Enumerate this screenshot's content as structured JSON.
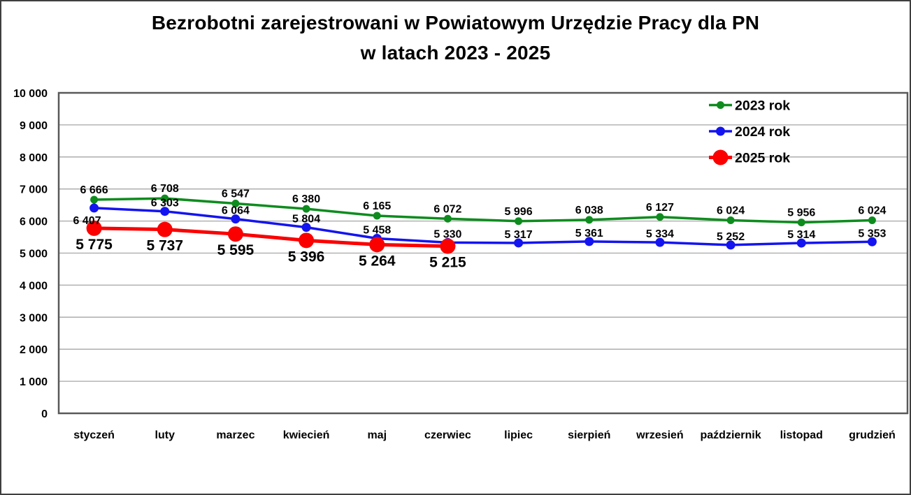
{
  "title": {
    "line1": "Bezrobotni zarejestrowani w Powiatowym Urzędzie Pracy dla PN",
    "line2": "w latach 2023 - 2025"
  },
  "chart_data": {
    "type": "line",
    "title": "Bezrobotni zarejestrowani w Powiatowym Urzędzie Pracy dla PN w latach 2023 - 2025",
    "categories": [
      "styczeń",
      "luty",
      "marzec",
      "kwiecień",
      "maj",
      "czerwiec",
      "lipiec",
      "sierpień",
      "wrzesień",
      "październik",
      "listopad",
      "grudzień"
    ],
    "series": [
      {
        "name": "2023 rok",
        "color": "#0E8C1E",
        "values": [
          6666,
          6708,
          6547,
          6380,
          6165,
          6072,
          5996,
          6038,
          6127,
          6024,
          5956,
          6024
        ]
      },
      {
        "name": "2024 rok",
        "color": "#1414F0",
        "values": [
          6407,
          6303,
          6064,
          5804,
          5458,
          5330,
          5317,
          5361,
          5334,
          5252,
          5314,
          5353
        ]
      },
      {
        "name": "2025 rok",
        "color": "#FA0000",
        "values": [
          5775,
          5737,
          5595,
          5396,
          5264,
          5215
        ]
      }
    ],
    "y_axis": {
      "min": 0,
      "max": 10000,
      "step": 1000,
      "tick_labels": [
        "0",
        "1 000",
        "2 000",
        "3 000",
        "4 000",
        "5 000",
        "6 000",
        "7 000",
        "8 000",
        "9 000",
        "10 000"
      ]
    },
    "legend": {
      "position": "top-right",
      "entries": [
        "2023 rok",
        "2024 rok",
        "2025 rok"
      ]
    },
    "data_labels": true,
    "number_format": "space thousands separator",
    "grid": "horizontal",
    "ylim": [
      0,
      10000
    ],
    "colors": {
      "gridline": "#A6A6A6",
      "plot_border": "#595959",
      "background": "#FFFFFF",
      "text": "#000000"
    }
  }
}
